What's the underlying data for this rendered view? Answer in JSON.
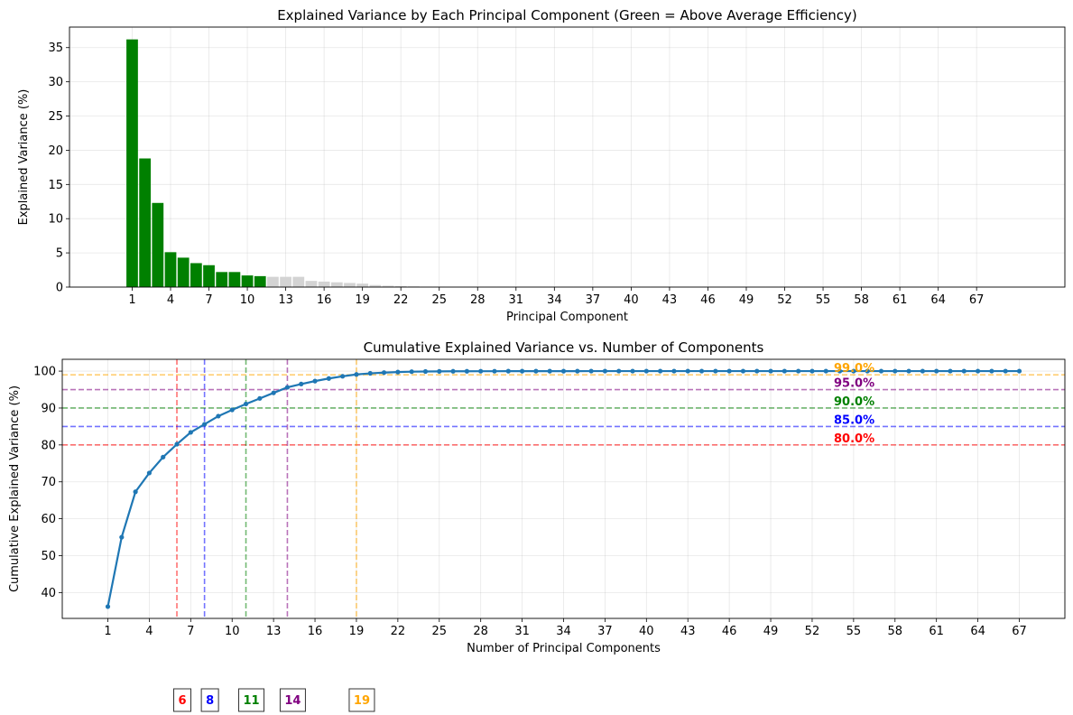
{
  "chart_data": [
    {
      "type": "bar",
      "title": "Explained Variance by Each Principal Component (Green = Above Average Efficiency)",
      "xlabel": "Principal Component",
      "ylabel": "Explained Variance (%)",
      "xlim": [
        -3.9,
        73.9
      ],
      "ylim": [
        0,
        38
      ],
      "x_ticks": [
        1,
        4,
        7,
        10,
        13,
        16,
        19,
        22,
        25,
        28,
        31,
        34,
        37,
        40,
        43,
        46,
        49,
        52,
        55,
        58,
        61,
        64,
        67
      ],
      "y_ticks": [
        0,
        5,
        10,
        15,
        20,
        25,
        30,
        35
      ],
      "grid": true,
      "colors": {
        "above_average": "#008000",
        "below_average": "#d3d3d3"
      },
      "above_average_components": [
        1,
        2,
        3,
        4,
        5,
        6,
        7,
        8,
        9,
        10,
        11
      ],
      "categories": [
        1,
        2,
        3,
        4,
        5,
        6,
        7,
        8,
        9,
        10,
        11,
        12,
        13,
        14,
        15,
        16,
        17,
        18,
        19,
        20,
        21,
        22,
        23,
        24,
        25,
        26,
        27,
        28,
        29,
        30,
        31,
        32,
        33,
        34,
        35,
        36,
        37,
        38,
        39,
        40,
        41,
        42,
        43,
        44,
        45,
        46,
        47,
        48,
        49,
        50,
        51,
        52,
        53,
        54,
        55,
        56,
        57,
        58,
        59,
        60,
        61,
        62,
        63,
        64,
        65,
        66,
        67
      ],
      "values": [
        36.2,
        18.8,
        12.3,
        5.1,
        4.3,
        3.5,
        3.2,
        2.2,
        2.2,
        1.7,
        1.6,
        1.5,
        1.5,
        1.5,
        0.9,
        0.8,
        0.7,
        0.6,
        0.5,
        0.3,
        0.2,
        0.15,
        0.1,
        0.05,
        0.03,
        0.02,
        0.01,
        0.01,
        0.01,
        0.01,
        0.005,
        0.005,
        0.005,
        0.005,
        0.005,
        0.005,
        0.005,
        0.005,
        0.005,
        0.005,
        0.005,
        0.005,
        0.005,
        0.005,
        0.005,
        0.005,
        0.005,
        0.005,
        0.005,
        0.005,
        0.005,
        0.005,
        0.005,
        0.005,
        0.005,
        0.005,
        0.005,
        0.005,
        0.005,
        0.005,
        0.005,
        0.005,
        0.005,
        0.005,
        0.005,
        0.005,
        0.005
      ]
    },
    {
      "type": "line",
      "title": "Cumulative Explained Variance vs. Number of Components",
      "xlabel": "Number of Principal Components",
      "ylabel": "Cumulative Explained Variance (%)",
      "xlim": [
        -2.3,
        70.3
      ],
      "ylim": [
        33,
        103.2
      ],
      "x_ticks": [
        1,
        4,
        7,
        10,
        13,
        16,
        19,
        22,
        25,
        28,
        31,
        34,
        37,
        40,
        43,
        46,
        49,
        52,
        55,
        58,
        61,
        64,
        67
      ],
      "y_ticks": [
        40,
        50,
        60,
        70,
        80,
        90,
        100
      ],
      "grid": true,
      "series": [
        {
          "color": "#1f77b4",
          "x": [
            1,
            2,
            3,
            4,
            5,
            6,
            7,
            8,
            9,
            10,
            11,
            12,
            13,
            14,
            15,
            16,
            17,
            18,
            19,
            20,
            21,
            22,
            23,
            24,
            25,
            26,
            27,
            28,
            29,
            30,
            31,
            32,
            33,
            34,
            35,
            36,
            37,
            38,
            39,
            40,
            41,
            42,
            43,
            44,
            45,
            46,
            47,
            48,
            49,
            50,
            51,
            52,
            53,
            54,
            55,
            56,
            57,
            58,
            59,
            60,
            61,
            62,
            63,
            64,
            65,
            66,
            67
          ],
          "y": [
            36.2,
            55.0,
            67.3,
            72.4,
            76.7,
            80.2,
            83.4,
            85.6,
            87.8,
            89.5,
            91.1,
            92.6,
            94.1,
            95.6,
            96.5,
            97.3,
            98.0,
            98.6,
            99.1,
            99.4,
            99.6,
            99.75,
            99.85,
            99.9,
            99.93,
            99.95,
            99.96,
            99.97,
            99.98,
            99.99,
            99.99,
            99.99,
            99.99,
            99.99,
            99.99,
            100.0,
            100.0,
            100.0,
            100.0,
            100.0,
            100.0,
            100.0,
            100.0,
            100.0,
            100.0,
            100.0,
            100.0,
            100.0,
            100.0,
            100.0,
            100.0,
            100.0,
            100.0,
            100.0,
            100.0,
            100.0,
            100.0,
            100.0,
            100.0,
            100.0,
            100.0,
            100.0,
            100.0,
            100.0,
            100.0,
            100.0,
            100.0
          ]
        }
      ],
      "thresholds": [
        {
          "value": 80,
          "label": "80.0%",
          "components": 6,
          "color": "#ff0000"
        },
        {
          "value": 85,
          "label": "85.0%",
          "components": 8,
          "color": "#0000ff"
        },
        {
          "value": 90,
          "label": "90.0%",
          "components": 11,
          "color": "#008000"
        },
        {
          "value": 95,
          "label": "95.0%",
          "components": 14,
          "color": "#800080"
        },
        {
          "value": 99,
          "label": "99.0%",
          "components": 19,
          "color": "#ffa500"
        }
      ]
    }
  ]
}
